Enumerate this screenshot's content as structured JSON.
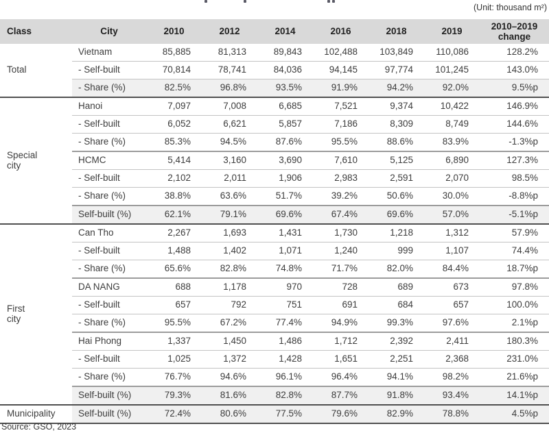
{
  "page": {
    "unit_label": "(Unit: thousand m²)",
    "source_note": "Source: GSO, 2023"
  },
  "colors": {
    "header_bg": "#d9d9d9",
    "shaded_row_bg": "#f0f0f0",
    "rule_dark": "#4f4f4f",
    "rule_medium": "#9b9b9b",
    "rule_light": "#c3c3c3",
    "text": "#353535"
  },
  "table": {
    "columns": [
      "Class",
      "City",
      "2010",
      "2012",
      "2014",
      "2016",
      "2018",
      "2019",
      "2010–2019 change"
    ],
    "groups": [
      {
        "class_label": "Total",
        "class_lines": [
          "Total"
        ],
        "rows": [
          {
            "city": "Vietnam",
            "divider": "none",
            "shaded": false,
            "values": [
              "85,885",
              "81,313",
              "89,843",
              "102,488",
              "103,849",
              "110,086",
              "128.2%"
            ]
          },
          {
            "city": "- Self-built",
            "divider": "light",
            "shaded": false,
            "values": [
              "70,814",
              "78,741",
              "84,036",
              "94,145",
              "97,774",
              "101,245",
              "143.0%"
            ]
          },
          {
            "city": "- Share (%)",
            "divider": "light",
            "shaded": true,
            "values": [
              "82.5%",
              "96.8%",
              "93.5%",
              "91.9%",
              "94.2%",
              "92.0%",
              "9.5%p"
            ]
          }
        ]
      },
      {
        "class_label": "Special city",
        "class_lines": [
          "Special",
          "city"
        ],
        "rows": [
          {
            "city": "Hanoi",
            "divider": "class",
            "shaded": false,
            "values": [
              "7,097",
              "7,008",
              "6,685",
              "7,521",
              "9,374",
              "10,422",
              "146.9%"
            ]
          },
          {
            "city": "- Self-built",
            "divider": "light",
            "shaded": false,
            "values": [
              "6,052",
              "6,621",
              "5,857",
              "7,186",
              "8,309",
              "8,749",
              "144.6%"
            ]
          },
          {
            "city": "- Share (%)",
            "divider": "light",
            "shaded": false,
            "values": [
              "85.3%",
              "94.5%",
              "87.6%",
              "95.5%",
              "88.6%",
              "83.9%",
              "-1.3%p"
            ]
          },
          {
            "city": "HCMC",
            "divider": "medium",
            "shaded": false,
            "values": [
              "5,414",
              "3,160",
              "3,690",
              "7,610",
              "5,125",
              "6,890",
              "127.3%"
            ]
          },
          {
            "city": "- Self-built",
            "divider": "light",
            "shaded": false,
            "values": [
              "2,102",
              "2,011",
              "1,906",
              "2,983",
              "2,591",
              "2,070",
              "98.5%"
            ]
          },
          {
            "city": "- Share (%)",
            "divider": "light",
            "shaded": false,
            "values": [
              "38.8%",
              "63.6%",
              "51.7%",
              "39.2%",
              "50.6%",
              "30.0%",
              "-8.8%p"
            ]
          },
          {
            "city": "Self-built (%)",
            "divider": "medium",
            "shaded": true,
            "values": [
              "62.1%",
              "79.1%",
              "69.6%",
              "67.4%",
              "69.6%",
              "57.0%",
              "-5.1%p"
            ]
          }
        ]
      },
      {
        "class_label": "First city",
        "class_lines": [
          "First",
          "city"
        ],
        "rows": [
          {
            "city": "Can Tho",
            "divider": "class",
            "shaded": false,
            "values": [
              "2,267",
              "1,693",
              "1,431",
              "1,730",
              "1,218",
              "1,312",
              "57.9%"
            ]
          },
          {
            "city": "- Self-built",
            "divider": "light",
            "shaded": false,
            "values": [
              "1,488",
              "1,402",
              "1,071",
              "1,240",
              "999",
              "1,107",
              "74.4%"
            ]
          },
          {
            "city": "- Share (%)",
            "divider": "light",
            "shaded": false,
            "values": [
              "65.6%",
              "82.8%",
              "74.8%",
              "71.7%",
              "82.0%",
              "84.4%",
              "18.7%p"
            ]
          },
          {
            "city": "DA NANG",
            "divider": "medium",
            "shaded": false,
            "values": [
              "688",
              "1,178",
              "970",
              "728",
              "689",
              "673",
              "97.8%"
            ]
          },
          {
            "city": "- Self-built",
            "divider": "light",
            "shaded": false,
            "values": [
              "657",
              "792",
              "751",
              "691",
              "684",
              "657",
              "100.0%"
            ]
          },
          {
            "city": "- Share (%)",
            "divider": "light",
            "shaded": false,
            "values": [
              "95.5%",
              "67.2%",
              "77.4%",
              "94.9%",
              "99.3%",
              "97.6%",
              "2.1%p"
            ]
          },
          {
            "city": "Hai Phong",
            "divider": "medium",
            "shaded": false,
            "values": [
              "1,337",
              "1,450",
              "1,486",
              "1,712",
              "2,392",
              "2,411",
              "180.3%"
            ]
          },
          {
            "city": "- Self-built",
            "divider": "light",
            "shaded": false,
            "values": [
              "1,025",
              "1,372",
              "1,428",
              "1,651",
              "2,251",
              "2,368",
              "231.0%"
            ]
          },
          {
            "city": "- Share (%)",
            "divider": "light",
            "shaded": false,
            "values": [
              "76.7%",
              "94.6%",
              "96.1%",
              "96.4%",
              "94.1%",
              "98.2%",
              "21.6%p"
            ]
          },
          {
            "city": "Self-built (%)",
            "divider": "medium",
            "shaded": true,
            "values": [
              "79.3%",
              "81.6%",
              "82.8%",
              "87.7%",
              "91.8%",
              "93.4%",
              "14.1%p"
            ]
          }
        ]
      },
      {
        "class_label": "Municipality",
        "class_lines": [
          "Municipality"
        ],
        "rows": [
          {
            "city": "Self-built (%)",
            "divider": "class",
            "shaded": true,
            "values": [
              "72.4%",
              "80.6%",
              "77.5%",
              "79.6%",
              "82.9%",
              "78.8%",
              "4.5%p"
            ]
          }
        ]
      }
    ]
  }
}
